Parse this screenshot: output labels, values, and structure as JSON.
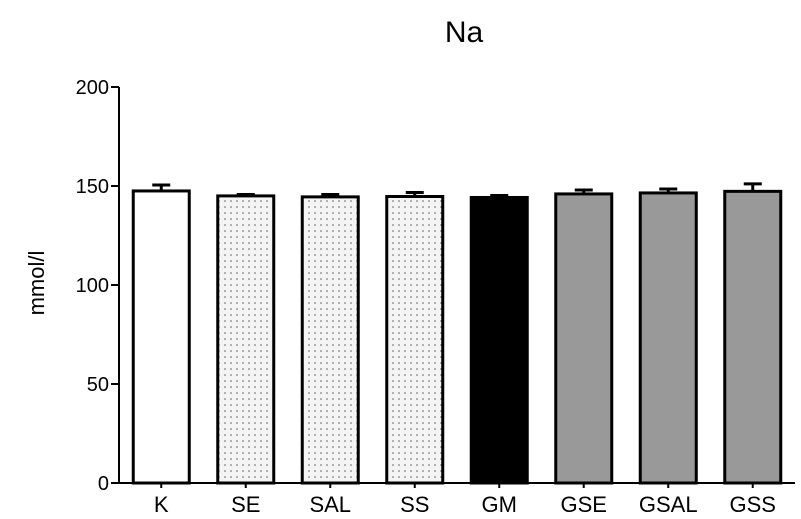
{
  "chart_data": {
    "type": "bar",
    "title": "Na",
    "ylabel": "mmol/l",
    "xlabel": "",
    "ylim": [
      0,
      200
    ],
    "yticks": [
      0,
      50,
      100,
      150,
      200
    ],
    "grid": false,
    "error_bars": "upper",
    "categories": [
      "K",
      "SE",
      "SAL",
      "SS",
      "GM",
      "GSE",
      "GSAL",
      "GSS"
    ],
    "values": [
      147.5,
      145.0,
      144.5,
      144.7,
      144.2,
      146.0,
      146.5,
      147.3
    ],
    "errors": [
      3.0,
      0.7,
      1.2,
      2.0,
      1.0,
      2.0,
      2.0,
      3.8
    ],
    "fills": [
      "white",
      "dotted",
      "dotted",
      "dotted",
      "black",
      "gray",
      "gray",
      "gray"
    ],
    "colors": {
      "white": "#ffffff",
      "dotted_bg": "#f4f4f4",
      "dotted_dot": "#555555",
      "black": "#000000",
      "gray": "#999999",
      "outline": "#000000"
    }
  }
}
